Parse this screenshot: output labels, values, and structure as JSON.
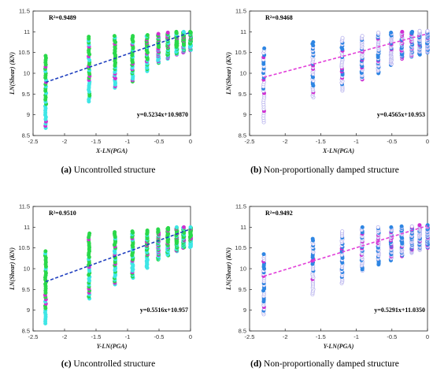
{
  "chart_data": [
    {
      "type": "scatter",
      "caption": {
        "tag": "(a)",
        "text": "Uncontrolled structure"
      },
      "xlabel": "X-LN(PGA)",
      "ylabel": "LN(Shear) (KN)",
      "xlim": [
        -2.5,
        0
      ],
      "ylim": [
        8.5,
        11.5
      ],
      "xticks": [
        "-2.5",
        "-2",
        "-1.5",
        "-1",
        "-0.5",
        "0"
      ],
      "yticks": [
        "8.5",
        "9",
        "9.5",
        "10",
        "10.5",
        "11",
        "11.5"
      ],
      "r2_label": "R²=0.9489",
      "equation_label": "y=0.5234x+10.9870",
      "fit": {
        "slope": 0.5234,
        "intercept": 10.987,
        "x_range": [
          -2.3,
          0
        ],
        "color": "#1f3fbf"
      },
      "marker_style": "filled",
      "series_colors": [
        "#2bd84a",
        "#3fe6e6",
        "#d12fd1"
      ],
      "columns": [
        {
          "x": -2.3,
          "lo": 8.68,
          "hi": 10.42
        },
        {
          "x": -1.61,
          "lo": 9.32,
          "hi": 10.88
        },
        {
          "x": -1.2,
          "lo": 9.65,
          "hi": 10.9
        },
        {
          "x": -0.92,
          "lo": 9.8,
          "hi": 10.9
        },
        {
          "x": -0.69,
          "lo": 10.05,
          "hi": 10.92
        },
        {
          "x": -0.51,
          "lo": 10.25,
          "hi": 10.95
        },
        {
          "x": -0.36,
          "lo": 10.35,
          "hi": 10.98
        },
        {
          "x": -0.22,
          "lo": 10.45,
          "hi": 11.0
        },
        {
          "x": -0.11,
          "lo": 10.5,
          "hi": 11.0
        },
        {
          "x": 0.0,
          "lo": 10.55,
          "hi": 11.0
        }
      ]
    },
    {
      "type": "scatter",
      "caption": {
        "tag": "(b)",
        "text": "Non-proportionally damped structure"
      },
      "xlabel": "X-LN(PGA)",
      "ylabel": "LN(Shear) (KN)",
      "xlim": [
        -2.5,
        0
      ],
      "ylim": [
        8.5,
        11.5
      ],
      "xticks": [
        "-2.5",
        "-2",
        "-1.5",
        "-1",
        "-0.5",
        "0"
      ],
      "yticks": [
        "8.5",
        "9",
        "9.5",
        "10",
        "10.5",
        "11",
        "11.5"
      ],
      "r2_label": "R²=0.9468",
      "equation_label": "y=0.4565x+10.953",
      "fit": {
        "slope": 0.4565,
        "intercept": 10.953,
        "x_range": [
          -2.3,
          0
        ],
        "color": "#e23fd9"
      },
      "marker_style": "mixed",
      "series_colors": [
        "#b9b4ee",
        "#2f86e3",
        "#d12fd1"
      ],
      "columns": [
        {
          "x": -2.3,
          "lo": 8.82,
          "hi": 10.6
        },
        {
          "x": -1.61,
          "lo": 9.42,
          "hi": 10.75
        },
        {
          "x": -1.2,
          "lo": 9.58,
          "hi": 10.85
        },
        {
          "x": -0.92,
          "lo": 9.85,
          "hi": 10.9
        },
        {
          "x": -0.69,
          "lo": 10.0,
          "hi": 10.98
        },
        {
          "x": -0.51,
          "lo": 10.2,
          "hi": 10.98
        },
        {
          "x": -0.36,
          "lo": 10.35,
          "hi": 11.0
        },
        {
          "x": -0.22,
          "lo": 10.4,
          "hi": 11.0
        },
        {
          "x": -0.11,
          "lo": 10.45,
          "hi": 11.02
        },
        {
          "x": 0.0,
          "lo": 10.5,
          "hi": 11.02
        }
      ]
    },
    {
      "type": "scatter",
      "caption": {
        "tag": "(c)",
        "text": "Uncontrolled structure"
      },
      "xlabel": "Y-LN(PGA)",
      "ylabel": "LN(Shear) (KN)",
      "xlim": [
        -2.5,
        0
      ],
      "ylim": [
        8.5,
        11.5
      ],
      "xticks": [
        "-2.5",
        "-2",
        "-1.5",
        "-1",
        "-0.5",
        "0"
      ],
      "yticks": [
        "8.5",
        "9",
        "9.5",
        "10",
        "10.5",
        "11",
        "11.5"
      ],
      "r2_label": "R²=0.9510",
      "equation_label": "y=0.5516x+10.957",
      "fit": {
        "slope": 0.5516,
        "intercept": 10.957,
        "x_range": [
          -2.3,
          0
        ],
        "color": "#1f3fbf"
      },
      "marker_style": "filled",
      "series_colors": [
        "#2bd84a",
        "#3fe6e6",
        "#d12fd1"
      ],
      "columns": [
        {
          "x": -2.3,
          "lo": 8.68,
          "hi": 10.42
        },
        {
          "x": -1.61,
          "lo": 9.28,
          "hi": 10.85
        },
        {
          "x": -1.2,
          "lo": 9.62,
          "hi": 10.88
        },
        {
          "x": -0.92,
          "lo": 9.78,
          "hi": 10.9
        },
        {
          "x": -0.69,
          "lo": 10.02,
          "hi": 10.92
        },
        {
          "x": -0.51,
          "lo": 10.22,
          "hi": 10.95
        },
        {
          "x": -0.36,
          "lo": 10.32,
          "hi": 10.98
        },
        {
          "x": -0.22,
          "lo": 10.42,
          "hi": 11.0
        },
        {
          "x": -0.11,
          "lo": 10.5,
          "hi": 11.0
        },
        {
          "x": 0.0,
          "lo": 10.52,
          "hi": 11.0
        }
      ]
    },
    {
      "type": "scatter",
      "caption": {
        "tag": "(d)",
        "text": "Non-proportionally damped structure"
      },
      "xlabel": "Y-LN(PGA)",
      "ylabel": "LN(Shear) (KN)",
      "xlim": [
        -2.5,
        0
      ],
      "ylim": [
        8.5,
        11.5
      ],
      "xticks": [
        "-2.5",
        "-2",
        "-1.5",
        "-1",
        "-0.5",
        "0"
      ],
      "yticks": [
        "8.5",
        "9",
        "9.5",
        "10",
        "10.5",
        "11",
        "11.5"
      ],
      "r2_label": "R²=0.9492",
      "equation_label": "y=0.5291x+11.0350",
      "fit": {
        "slope": 0.5291,
        "intercept": 11.035,
        "x_range": [
          -2.3,
          0
        ],
        "color": "#e23fd9"
      },
      "marker_style": "mixed",
      "series_colors": [
        "#b9b4ee",
        "#2f86e3",
        "#d12fd1"
      ],
      "columns": [
        {
          "x": -2.3,
          "lo": 8.9,
          "hi": 10.35
        },
        {
          "x": -1.61,
          "lo": 9.38,
          "hi": 10.72
        },
        {
          "x": -1.2,
          "lo": 9.65,
          "hi": 10.9
        },
        {
          "x": -0.92,
          "lo": 9.95,
          "hi": 11.0
        },
        {
          "x": -0.69,
          "lo": 10.1,
          "hi": 11.0
        },
        {
          "x": -0.51,
          "lo": 10.2,
          "hi": 11.0
        },
        {
          "x": -0.36,
          "lo": 10.3,
          "hi": 11.02
        },
        {
          "x": -0.22,
          "lo": 10.38,
          "hi": 11.02
        },
        {
          "x": -0.11,
          "lo": 10.45,
          "hi": 11.05
        },
        {
          "x": 0.0,
          "lo": 10.5,
          "hi": 11.05
        }
      ]
    }
  ]
}
